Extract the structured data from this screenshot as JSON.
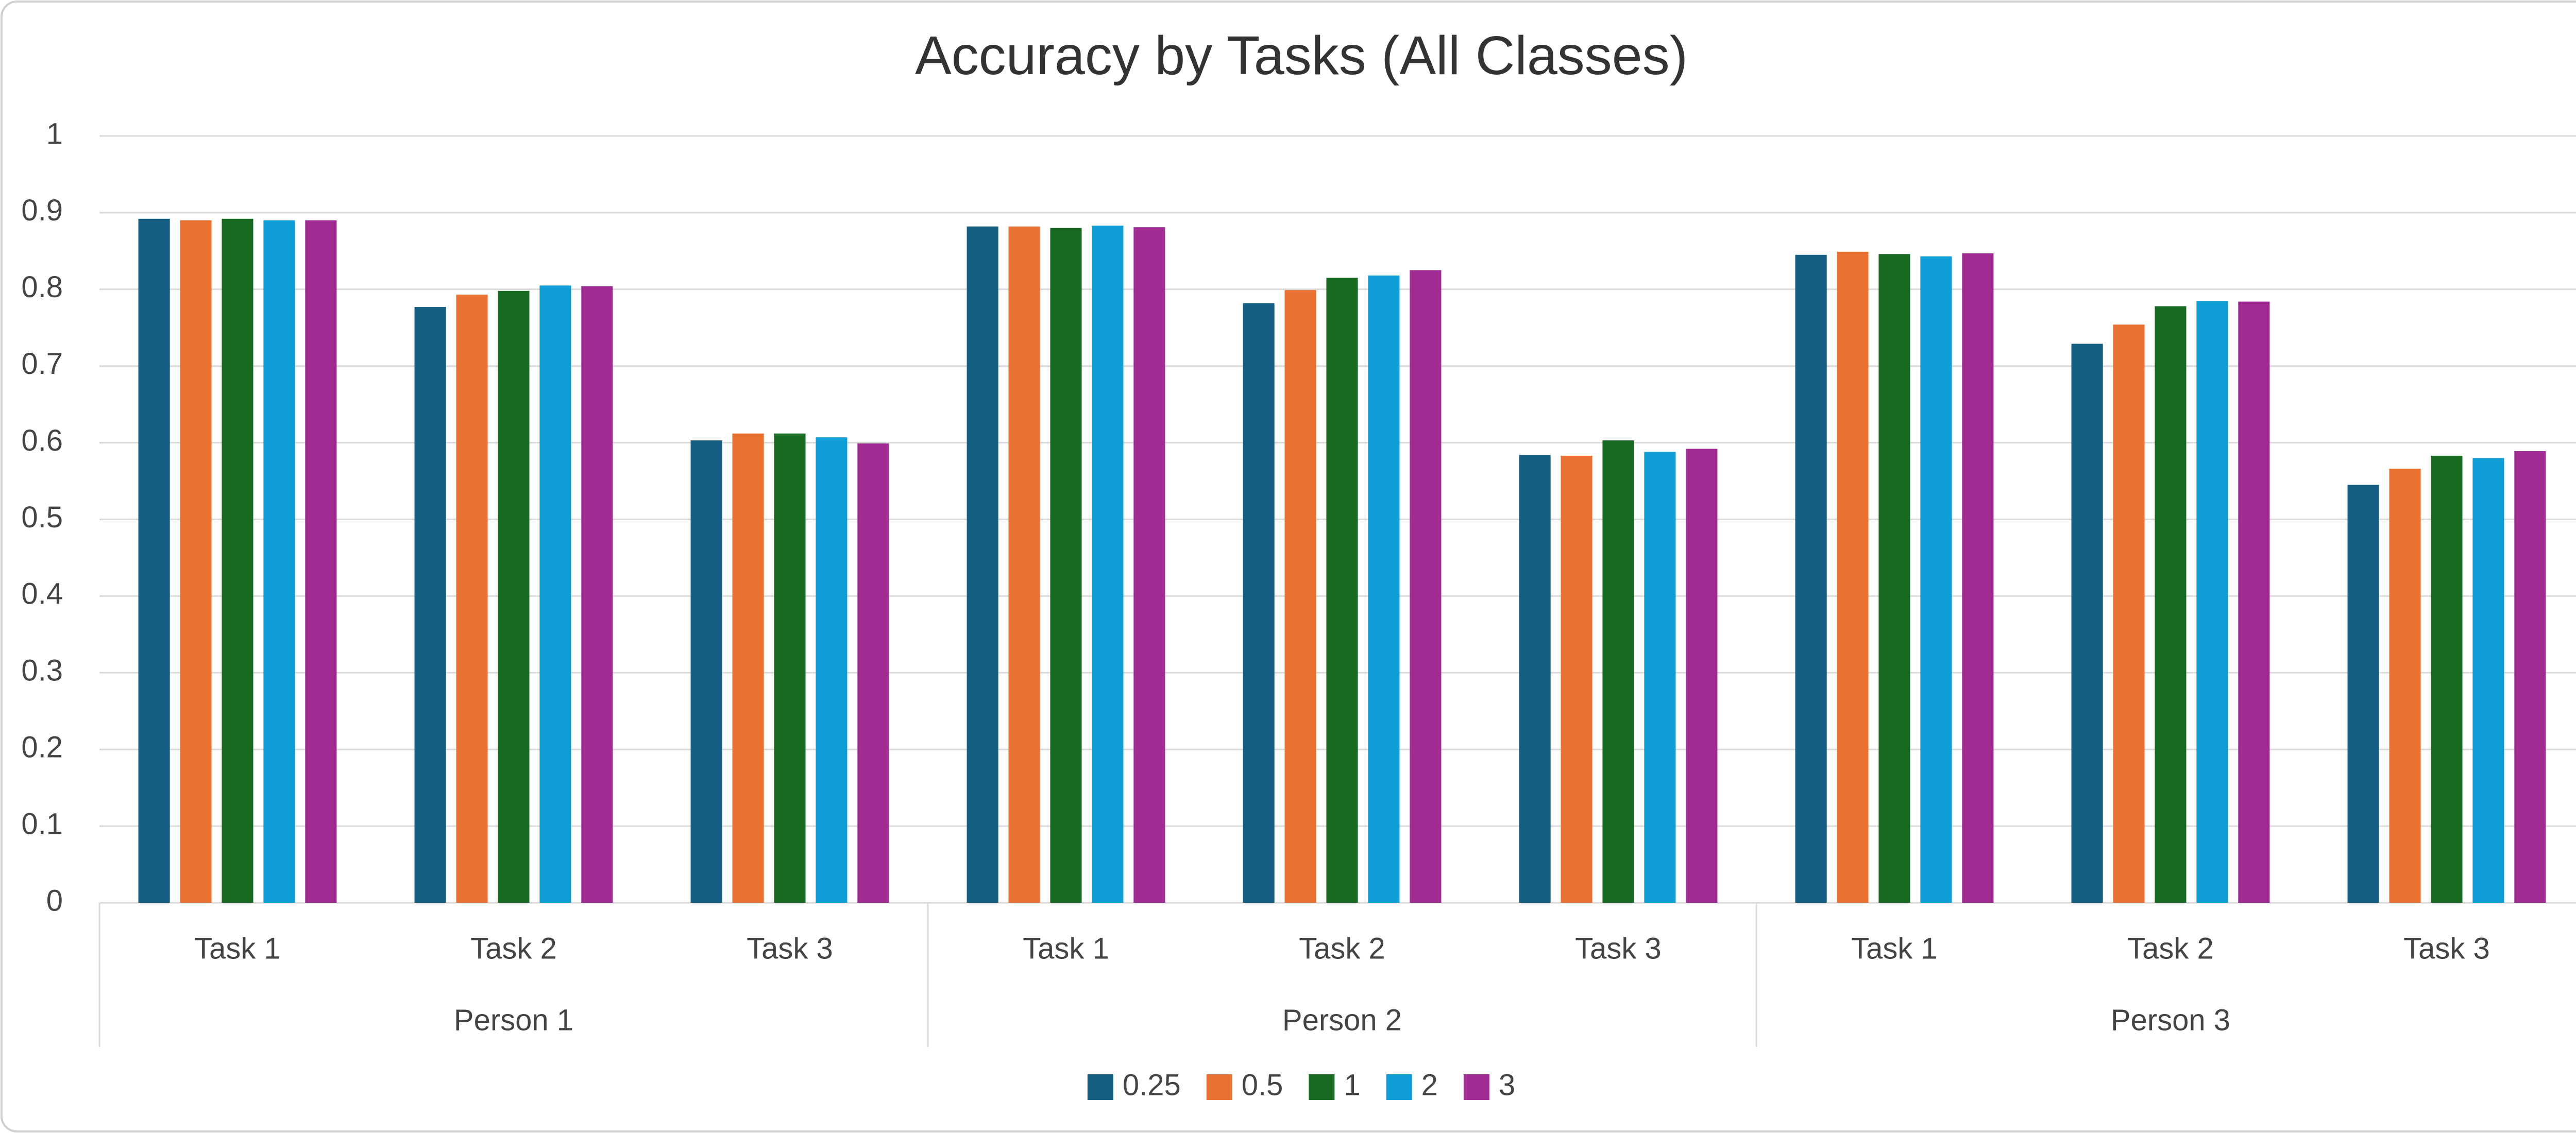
{
  "chart_data": {
    "type": "bar",
    "title": "Accuracy by Tasks (All Classes)",
    "categories": [
      "Task 1",
      "Task 2",
      "Task 3",
      "Task 1",
      "Task 2",
      "Task 3",
      "Task 1",
      "Task 2",
      "Task 3"
    ],
    "groups": [
      "Person 1",
      "Person 2",
      "Person 3"
    ],
    "series": [
      {
        "name": "0.25",
        "color": "#156082",
        "values": [
          0.892,
          0.777,
          0.603,
          0.882,
          0.782,
          0.584,
          0.845,
          0.729,
          0.545
        ]
      },
      {
        "name": "0.5",
        "color": "#e97132",
        "values": [
          0.89,
          0.793,
          0.612,
          0.882,
          0.799,
          0.583,
          0.849,
          0.754,
          0.566
        ]
      },
      {
        "name": "1",
        "color": "#196b24",
        "values": [
          0.892,
          0.798,
          0.612,
          0.88,
          0.815,
          0.603,
          0.846,
          0.778,
          0.583
        ]
      },
      {
        "name": "2",
        "color": "#0f9ed5",
        "values": [
          0.89,
          0.805,
          0.607,
          0.883,
          0.818,
          0.588,
          0.843,
          0.785,
          0.58
        ]
      },
      {
        "name": "3",
        "color": "#a02b93",
        "values": [
          0.89,
          0.804,
          0.599,
          0.881,
          0.825,
          0.592,
          0.847,
          0.784,
          0.589
        ]
      }
    ],
    "ylim": [
      0,
      1
    ],
    "yticks": [
      0,
      0.1,
      0.2,
      0.3,
      0.4,
      0.5,
      0.6,
      0.7,
      0.8,
      0.9,
      1
    ],
    "grid": true,
    "legend": "bottom"
  }
}
